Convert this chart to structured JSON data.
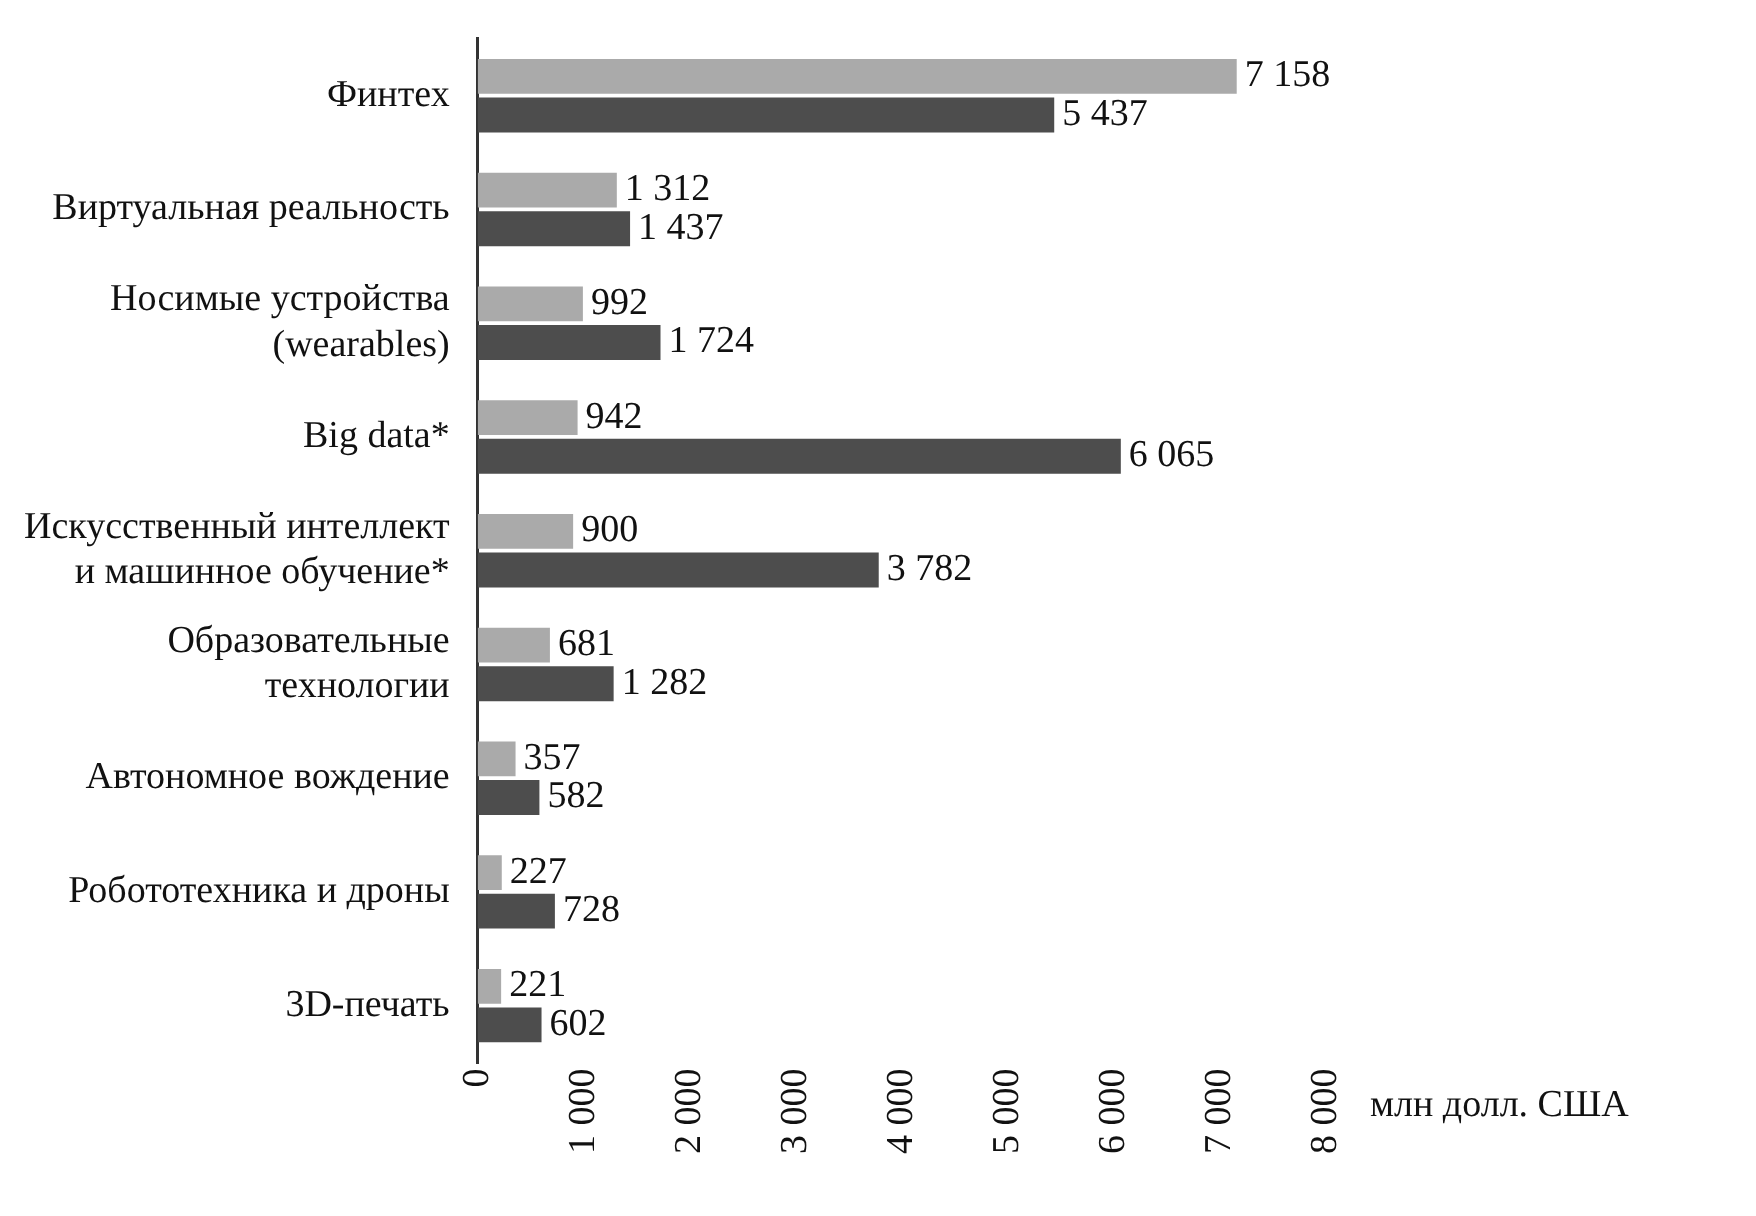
{
  "chart_data": {
    "type": "bar",
    "orientation": "horizontal",
    "xlabel": "млн долл. США",
    "categories": [
      "Финтех",
      "Виртуальная реальность",
      "Носимые устройства (wearables)",
      "Big data*",
      "Искусственный интеллект и машинное обучение*",
      "Образовательные технологии",
      "Автономное вождение",
      "Робототехника и дроны",
      "3D-печать"
    ],
    "series": [
      {
        "color": "#aaaaaa",
        "values": [
          7158,
          1312,
          992,
          942,
          900,
          681,
          357,
          227,
          221
        ],
        "value_labels": [
          "7 158",
          "1 312",
          "992",
          "942",
          "900",
          "681",
          "357",
          "227",
          "221"
        ]
      },
      {
        "color": "#4d4d4d",
        "values": [
          5437,
          1437,
          1724,
          6065,
          3782,
          1282,
          582,
          728,
          602
        ],
        "value_labels": [
          "5 437",
          "1 437",
          "1 724",
          "6 065",
          "3 782",
          "1 282",
          "582",
          "728",
          "602"
        ]
      }
    ],
    "xlim": [
      0,
      8000
    ],
    "xticks": [
      {
        "value": 0,
        "label": "0"
      },
      {
        "value": 1000,
        "label": "1 000"
      },
      {
        "value": 2000,
        "label": "2 000"
      },
      {
        "value": 3000,
        "label": "3 000"
      },
      {
        "value": 4000,
        "label": "4 000"
      },
      {
        "value": 5000,
        "label": "5 000"
      },
      {
        "value": 6000,
        "label": "6 000"
      },
      {
        "value": 7000,
        "label": "7 000"
      },
      {
        "value": 8000,
        "label": "8 000"
      }
    ],
    "grid": false,
    "legend": false
  }
}
